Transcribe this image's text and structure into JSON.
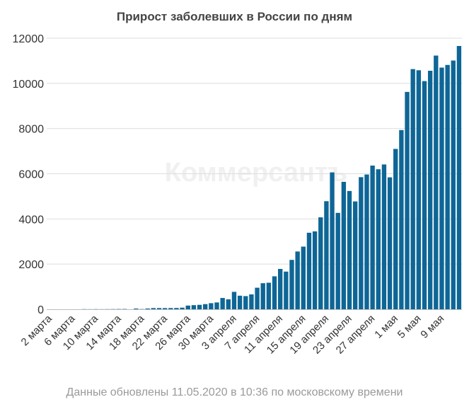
{
  "header": {
    "title": "Прирост заболевших в России по дням"
  },
  "footer": {
    "note": "Данные обновлены 11.05.2020 в 10:36 по московскому времени"
  },
  "watermark": "Коммерсантъ",
  "chart_data": {
    "type": "bar",
    "title": "Прирост заболевших в России по дням",
    "xlabel": "",
    "ylabel": "",
    "ylim": [
      0,
      12000
    ],
    "yticks": [
      0,
      2000,
      4000,
      6000,
      8000,
      10000,
      12000
    ],
    "grid": true,
    "legend": "none",
    "bar_color": "#0e6696",
    "x_tick_labels": [
      "2 марта",
      "6 марта",
      "10 марта",
      "14 марта",
      "18 марта",
      "22 марта",
      "26 марта",
      "30 марта",
      "3 апреля",
      "7 апреля",
      "11 апреля",
      "15 апреля",
      "19 апреля",
      "23 апреля",
      "27 апреля",
      "1 мая",
      "5 мая",
      "9 мая"
    ],
    "series": [
      {
        "values": [
          1,
          0,
          0,
          0,
          1,
          0,
          7,
          4,
          7,
          4,
          6,
          8,
          11,
          13,
          0,
          31,
          10,
          33,
          52,
          53,
          52,
          54,
          57,
          71,
          163,
          182,
          196,
          228,
          270,
          302,
          500,
          440,
          771,
          601,
          582,
          658,
          954,
          1154,
          1175,
          1459,
          1786,
          1667,
          2186,
          2558,
          2774,
          3388,
          3448,
          4070,
          4785,
          6060,
          4268,
          5642,
          5236,
          4774,
          5849,
          5966,
          6361,
          6198,
          6411,
          5841,
          7099,
          7933,
          9623,
          10633,
          10581,
          10102,
          10559,
          11231,
          10699,
          10817,
          11012,
          11656
        ]
      }
    ]
  }
}
